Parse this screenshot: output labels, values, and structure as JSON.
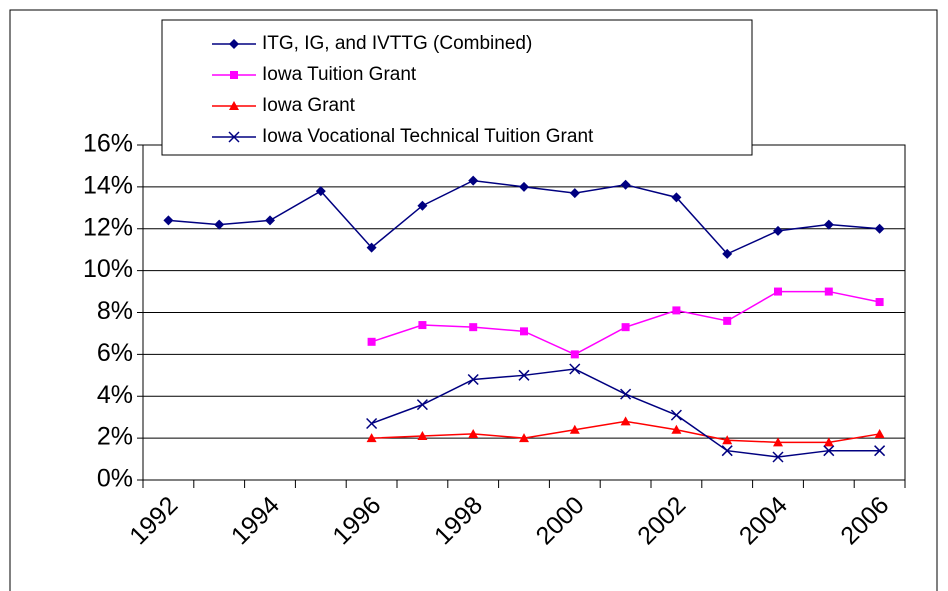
{
  "chart_data": {
    "type": "line",
    "categories": [
      "1992",
      null,
      "1994",
      null,
      "1996",
      null,
      "1998",
      null,
      "2000",
      null,
      "2002",
      null,
      "2004",
      null,
      "2006"
    ],
    "series": [
      {
        "name": "ITG, IG, and IVTTG (Combined)",
        "color": "#000080",
        "marker": "diamond",
        "values": [
          12.4,
          12.2,
          12.4,
          13.8,
          11.1,
          13.1,
          14.3,
          14.0,
          13.7,
          14.1,
          13.5,
          10.8,
          11.9,
          12.2,
          12.0
        ]
      },
      {
        "name": "Iowa Tuition Grant",
        "color": "#ff00ff",
        "marker": "square",
        "values": [
          null,
          null,
          null,
          null,
          6.6,
          7.4,
          7.3,
          7.1,
          6.0,
          7.3,
          8.1,
          7.6,
          9.0,
          9.0,
          8.5
        ]
      },
      {
        "name": "Iowa Grant",
        "color": "#ff0000",
        "marker": "triangle",
        "values": [
          null,
          null,
          null,
          null,
          2.0,
          2.1,
          2.2,
          2.0,
          2.4,
          2.8,
          2.4,
          1.9,
          1.8,
          1.8,
          2.2
        ]
      },
      {
        "name": "Iowa Vocational Technical Tuition Grant",
        "color": "#000080",
        "marker": "x",
        "values": [
          null,
          null,
          null,
          null,
          2.7,
          3.6,
          4.8,
          5.0,
          5.3,
          4.1,
          3.1,
          1.4,
          1.1,
          1.4,
          1.4
        ]
      }
    ],
    "ylim": [
      0,
      16
    ],
    "yticks": [
      {
        "value": 0,
        "label": "0%"
      },
      {
        "value": 2,
        "label": "2%"
      },
      {
        "value": 4,
        "label": "4%"
      },
      {
        "value": 6,
        "label": "6%"
      },
      {
        "value": 8,
        "label": "8%"
      },
      {
        "value": 10,
        "label": "10%"
      },
      {
        "value": 12,
        "label": "12%"
      },
      {
        "value": 14,
        "label": "14%"
      },
      {
        "value": 16,
        "label": "16%"
      }
    ],
    "grid": true
  }
}
